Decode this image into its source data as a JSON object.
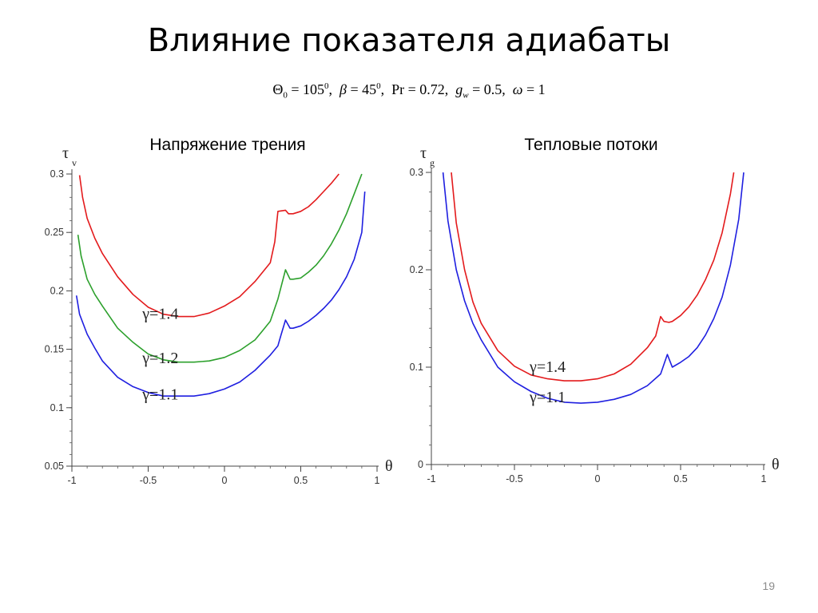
{
  "slide": {
    "title": "Влияние показателя адиабаты",
    "params": {
      "theta0": "105",
      "beta": "45",
      "pr": "0.72",
      "gw": "0.5",
      "omega": "1"
    },
    "page_number": "19"
  },
  "chart_data": [
    {
      "type": "line",
      "title": "Напряжение трения",
      "ylabel": "τ",
      "ylabel_sub": "v",
      "xlabel": "θ",
      "xlim": [
        -1,
        1
      ],
      "ylim": [
        0.05,
        0.3
      ],
      "xticks": [
        -1,
        -0.5,
        0,
        0.5,
        1
      ],
      "xtick_labels": [
        "-1",
        "-0.5",
        "0",
        "0.5",
        "1"
      ],
      "yticks": [
        0.05,
        0.1,
        0.15,
        0.2,
        0.25,
        0.3
      ],
      "ytick_labels": [
        "0.05",
        "0.1",
        "0.15",
        "0.2",
        "0.25",
        "0.3"
      ],
      "grid": false,
      "series": [
        {
          "name": "γ=1.4",
          "color": "#e31a1c",
          "x": [
            -0.95,
            -0.93,
            -0.9,
            -0.85,
            -0.8,
            -0.7,
            -0.6,
            -0.5,
            -0.4,
            -0.3,
            -0.2,
            -0.1,
            0,
            0.1,
            0.2,
            0.3,
            0.33,
            0.35,
            0.4,
            0.42,
            0.45,
            0.5,
            0.55,
            0.6,
            0.65,
            0.7,
            0.75
          ],
          "y": [
            0.299,
            0.28,
            0.262,
            0.245,
            0.232,
            0.212,
            0.197,
            0.186,
            0.18,
            0.178,
            0.178,
            0.181,
            0.187,
            0.195,
            0.208,
            0.224,
            0.242,
            0.268,
            0.269,
            0.266,
            0.266,
            0.268,
            0.272,
            0.278,
            0.285,
            0.292,
            0.3
          ]
        },
        {
          "name": "γ=1.2",
          "color": "#2ca02c",
          "x": [
            -0.96,
            -0.94,
            -0.9,
            -0.85,
            -0.8,
            -0.7,
            -0.6,
            -0.5,
            -0.4,
            -0.3,
            -0.2,
            -0.1,
            0,
            0.1,
            0.2,
            0.25,
            0.3,
            0.35,
            0.4,
            0.43,
            0.45,
            0.5,
            0.55,
            0.6,
            0.65,
            0.7,
            0.75,
            0.8,
            0.85,
            0.9
          ],
          "y": [
            0.248,
            0.23,
            0.21,
            0.197,
            0.187,
            0.168,
            0.156,
            0.146,
            0.141,
            0.139,
            0.139,
            0.14,
            0.143,
            0.149,
            0.158,
            0.166,
            0.174,
            0.193,
            0.218,
            0.21,
            0.21,
            0.211,
            0.216,
            0.222,
            0.23,
            0.24,
            0.252,
            0.266,
            0.283,
            0.3
          ]
        },
        {
          "name": "γ=1.1",
          "color": "#1f1fe0",
          "x": [
            -0.97,
            -0.95,
            -0.9,
            -0.85,
            -0.8,
            -0.7,
            -0.6,
            -0.5,
            -0.4,
            -0.3,
            -0.2,
            -0.1,
            0,
            0.1,
            0.2,
            0.3,
            0.35,
            0.37,
            0.4,
            0.43,
            0.45,
            0.5,
            0.55,
            0.6,
            0.65,
            0.7,
            0.75,
            0.8,
            0.85,
            0.9,
            0.92
          ],
          "y": [
            0.196,
            0.18,
            0.163,
            0.151,
            0.14,
            0.126,
            0.118,
            0.113,
            0.11,
            0.11,
            0.11,
            0.112,
            0.116,
            0.122,
            0.132,
            0.145,
            0.153,
            0.162,
            0.175,
            0.168,
            0.168,
            0.17,
            0.174,
            0.179,
            0.185,
            0.192,
            0.201,
            0.212,
            0.227,
            0.25,
            0.285
          ]
        }
      ],
      "annotations": [
        "γ=1.4",
        "γ=1.2",
        "γ=1.1"
      ]
    },
    {
      "type": "line",
      "title": "Тепловые потоки",
      "ylabel": "τ",
      "ylabel_sub": "g",
      "xlabel": "θ",
      "xlim": [
        -1,
        1
      ],
      "ylim": [
        0,
        0.3
      ],
      "xticks": [
        -1,
        -0.5,
        0,
        0.5,
        1
      ],
      "xtick_labels": [
        "-1",
        "-0.5",
        "0",
        "0.5",
        "1"
      ],
      "yticks": [
        0,
        0.1,
        0.2,
        0.3
      ],
      "ytick_labels": [
        "0",
        "0.1",
        "0.2",
        "0.3"
      ],
      "grid": false,
      "series": [
        {
          "name": "γ=1.4",
          "color": "#e31a1c",
          "x": [
            -0.88,
            -0.85,
            -0.8,
            -0.75,
            -0.7,
            -0.6,
            -0.5,
            -0.4,
            -0.3,
            -0.2,
            -0.1,
            0,
            0.1,
            0.2,
            0.3,
            0.35,
            0.38,
            0.4,
            0.43,
            0.45,
            0.5,
            0.55,
            0.6,
            0.65,
            0.7,
            0.75,
            0.8,
            0.82
          ],
          "y": [
            0.3,
            0.248,
            0.2,
            0.167,
            0.145,
            0.117,
            0.101,
            0.092,
            0.088,
            0.086,
            0.086,
            0.088,
            0.093,
            0.103,
            0.12,
            0.132,
            0.152,
            0.147,
            0.146,
            0.147,
            0.153,
            0.162,
            0.174,
            0.19,
            0.21,
            0.238,
            0.278,
            0.3
          ]
        },
        {
          "name": "γ=1.1",
          "color": "#1f1fe0",
          "x": [
            -0.93,
            -0.9,
            -0.85,
            -0.8,
            -0.75,
            -0.7,
            -0.6,
            -0.5,
            -0.4,
            -0.3,
            -0.2,
            -0.1,
            0,
            0.1,
            0.2,
            0.3,
            0.38,
            0.42,
            0.45,
            0.5,
            0.55,
            0.6,
            0.65,
            0.7,
            0.75,
            0.8,
            0.85,
            0.88
          ],
          "y": [
            0.3,
            0.25,
            0.2,
            0.168,
            0.145,
            0.128,
            0.1,
            0.085,
            0.075,
            0.068,
            0.064,
            0.063,
            0.064,
            0.067,
            0.072,
            0.081,
            0.093,
            0.113,
            0.1,
            0.105,
            0.111,
            0.12,
            0.133,
            0.15,
            0.172,
            0.205,
            0.252,
            0.3
          ]
        }
      ],
      "annotations": [
        "γ=1.4",
        "γ=1.1"
      ]
    }
  ]
}
